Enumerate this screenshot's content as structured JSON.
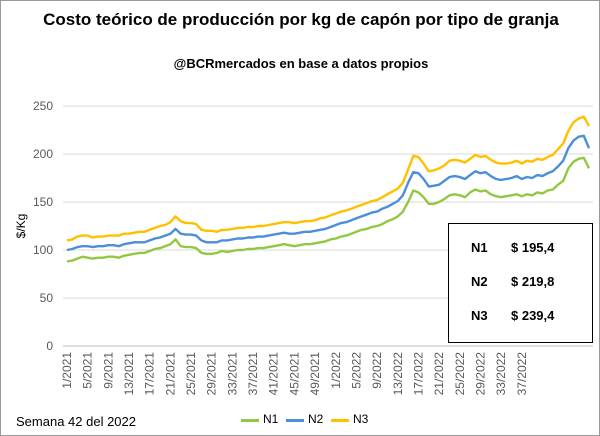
{
  "title": "Costo teórico de producción por kg de capón por tipo de granja",
  "subtitle": "@BCRmercados en base a datos propios",
  "footer_note": "Semana 42 del 2022",
  "value_box": [
    {
      "name": "N1",
      "value": "$ 195,4"
    },
    {
      "name": "N2",
      "value": "$ 219,8"
    },
    {
      "name": "N3",
      "value": "$ 239,4"
    }
  ],
  "colors": {
    "N1": "#92C841",
    "N2": "#4A8FD8",
    "N3": "#FFC000"
  },
  "chart_data": {
    "type": "line",
    "title": "Costo teórico de producción por kg de capón por tipo de granja",
    "xlabel": "",
    "ylabel": "$/Kg",
    "ylim": [
      0,
      250
    ],
    "yticks": [
      0,
      50,
      100,
      150,
      200,
      250
    ],
    "x_tick_labels": [
      "1/2021",
      "5/2021",
      "9/2021",
      "13/2021",
      "17/2021",
      "21/2021",
      "25/2021",
      "29/2021",
      "33/2021",
      "37/2021",
      "41/2021",
      "45/2021",
      "49/2021",
      "1/2022",
      "5/2022",
      "9/2022",
      "13/2022",
      "17/2022",
      "21/2022",
      "25/2022",
      "29/2022",
      "33/2022",
      "37/2022"
    ],
    "grid": "horizontal",
    "legend": "bottom",
    "series": [
      {
        "name": "N1",
        "color": "#92C841",
        "values": [
          88,
          89,
          91,
          93,
          92,
          91,
          92,
          92,
          93,
          93,
          92,
          94,
          95,
          96,
          97,
          97,
          99,
          101,
          102,
          104,
          106,
          111,
          104,
          103,
          103,
          102,
          97,
          96,
          96,
          97,
          99,
          98,
          99,
          100,
          100,
          101,
          101,
          102,
          102,
          103,
          104,
          105,
          106,
          105,
          104,
          105,
          106,
          106,
          107,
          108,
          109,
          111,
          112,
          114,
          115,
          117,
          119,
          121,
          122,
          124,
          125,
          127,
          130,
          132,
          135,
          140,
          150,
          162,
          160,
          155,
          148,
          148,
          150,
          153,
          157,
          158,
          157,
          155,
          160,
          163,
          161,
          162,
          158,
          156,
          155,
          156,
          157,
          158,
          156,
          158,
          157,
          160,
          159,
          162,
          163,
          168,
          172,
          185,
          192,
          195,
          196,
          185
        ]
      },
      {
        "name": "N2",
        "color": "#4A8FD8",
        "values": [
          100,
          101,
          103,
          104,
          104,
          103,
          104,
          104,
          105,
          105,
          104,
          106,
          107,
          108,
          108,
          108,
          110,
          112,
          113,
          115,
          117,
          122,
          117,
          116,
          116,
          115,
          110,
          108,
          108,
          108,
          110,
          110,
          111,
          112,
          112,
          113,
          113,
          114,
          114,
          115,
          116,
          117,
          118,
          117,
          117,
          118,
          119,
          119,
          120,
          121,
          122,
          124,
          126,
          128,
          129,
          131,
          133,
          135,
          137,
          139,
          140,
          143,
          145,
          148,
          151,
          157,
          170,
          181,
          180,
          174,
          166,
          167,
          168,
          172,
          176,
          177,
          176,
          174,
          178,
          182,
          180,
          181,
          177,
          174,
          173,
          174,
          175,
          177,
          174,
          176,
          175,
          178,
          177,
          180,
          182,
          187,
          193,
          206,
          214,
          218,
          219,
          206
        ]
      },
      {
        "name": "N3",
        "color": "#FFC000",
        "values": [
          110,
          111,
          114,
          115,
          115,
          113,
          114,
          114,
          115,
          115,
          115,
          117,
          117,
          118,
          119,
          119,
          121,
          123,
          125,
          126,
          129,
          135,
          130,
          128,
          128,
          127,
          121,
          120,
          120,
          119,
          121,
          121,
          122,
          123,
          123,
          124,
          124,
          125,
          125,
          126,
          127,
          128,
          129,
          129,
          128,
          129,
          130,
          130,
          131,
          133,
          134,
          136,
          138,
          140,
          141,
          143,
          145,
          147,
          149,
          151,
          152,
          155,
          158,
          161,
          164,
          170,
          184,
          198,
          197,
          190,
          182,
          183,
          185,
          188,
          193,
          194,
          193,
          191,
          195,
          199,
          197,
          198,
          194,
          191,
          190,
          190,
          191,
          193,
          190,
          193,
          192,
          195,
          194,
          197,
          199,
          205,
          211,
          224,
          233,
          237,
          239,
          229
        ]
      }
    ]
  }
}
